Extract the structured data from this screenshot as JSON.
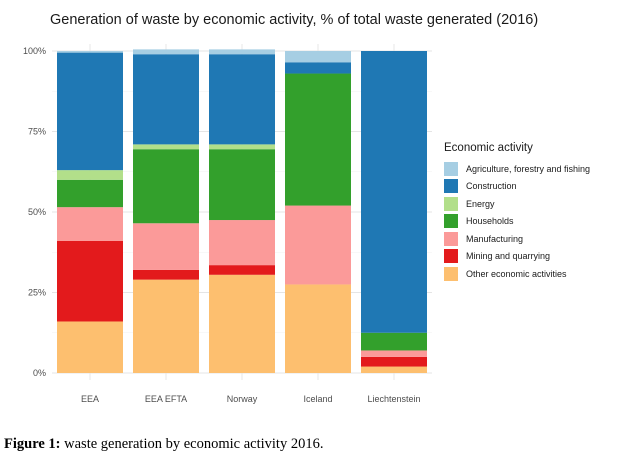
{
  "chart_data": {
    "type": "bar",
    "stacked": true,
    "title": "Generation of waste by economic activity, % of total waste generated (2016)",
    "xlabel": "",
    "ylabel": "",
    "ylim": [
      0,
      100
    ],
    "yticks": [
      "0%",
      "25%",
      "50%",
      "75%",
      "100%"
    ],
    "grid": true,
    "legend_title": "Economic activity",
    "legend_position": "right",
    "categories": [
      "EEA",
      "EEA EFTA",
      "Norway",
      "Iceland",
      "Liechtenstein"
    ],
    "series": [
      {
        "name": "Other economic activities",
        "color": "#FDBF6F",
        "values": [
          16,
          29,
          30.5,
          27.5,
          2
        ]
      },
      {
        "name": "Mining and quarrying",
        "color": "#E31A1C",
        "values": [
          25,
          3,
          3,
          0,
          3
        ]
      },
      {
        "name": "Manufacturing",
        "color": "#FB9A99",
        "values": [
          10.5,
          14.5,
          14,
          24.5,
          2
        ]
      },
      {
        "name": "Households",
        "color": "#33A02C",
        "values": [
          8.5,
          23,
          22,
          41,
          5.5
        ]
      },
      {
        "name": "Energy",
        "color": "#B2DF8A",
        "values": [
          3,
          1.5,
          1.5,
          0,
          0
        ]
      },
      {
        "name": "Construction",
        "color": "#1F78B4",
        "values": [
          36.5,
          28,
          28,
          3.5,
          87.5
        ]
      },
      {
        "name": "Agriculture, forestry and fishing",
        "color": "#A6CEE3",
        "values": [
          0.5,
          1.5,
          1.5,
          3.5,
          0
        ]
      }
    ],
    "legend_order": [
      "Agriculture, forestry and fishing",
      "Construction",
      "Energy",
      "Households",
      "Manufacturing",
      "Mining and quarrying",
      "Other economic activities"
    ]
  },
  "caption": {
    "label": "Figure 1:",
    "text": " waste generation by economic activity 2016."
  }
}
